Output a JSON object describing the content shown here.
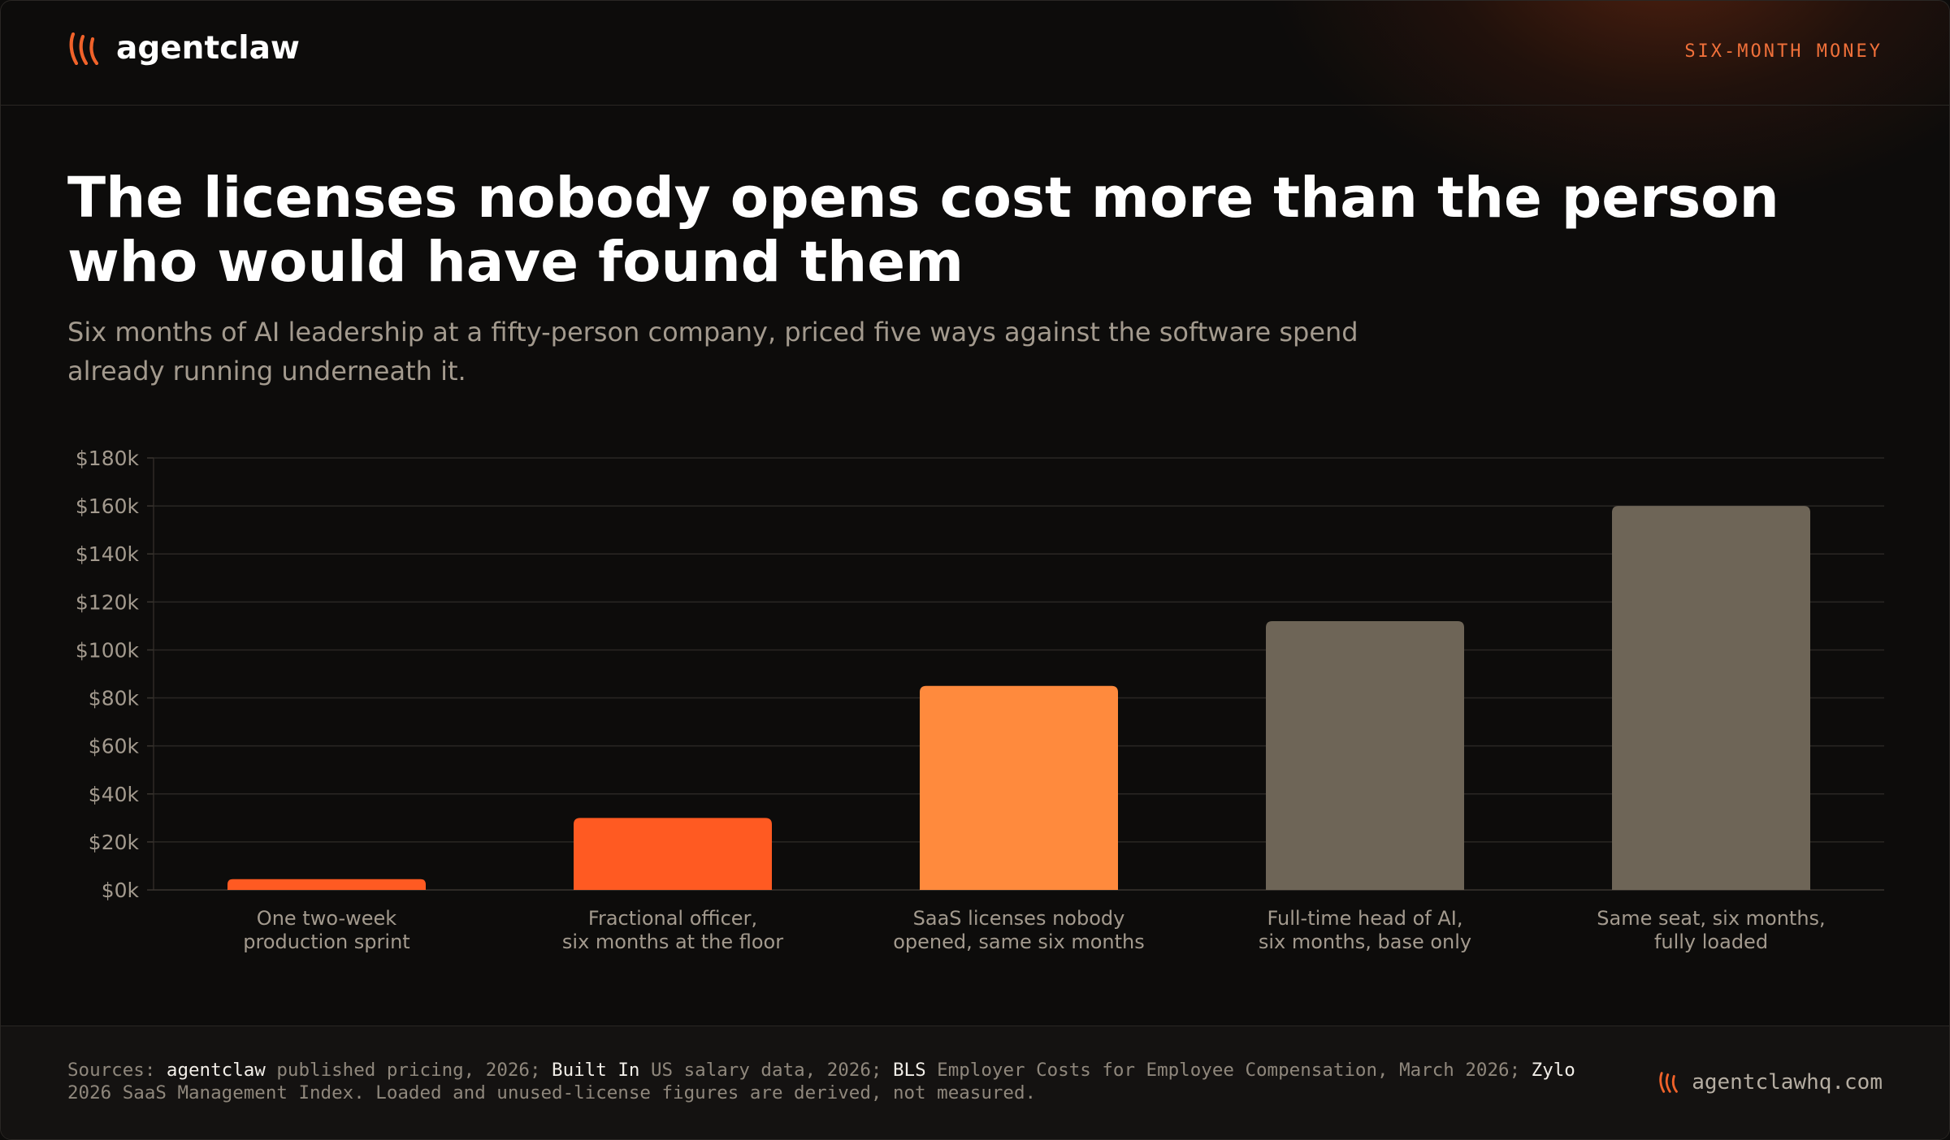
{
  "brand": {
    "name": "agentclaw",
    "logo_icon": "claw-marks-icon",
    "accent": "#f0622a"
  },
  "header": {
    "tag": "SIX-MONTH MONEY"
  },
  "title": "The licenses nobody opens cost more than the person who would have found them",
  "subtitle": "Six months of AI leadership at a fifty-person company, priced five ways against the software spend already running underneath it.",
  "chart_data": {
    "type": "bar",
    "categories": [
      [
        "One two-week",
        "production sprint"
      ],
      [
        "Fractional officer,",
        "six months at the floor"
      ],
      [
        "SaaS licenses nobody",
        "opened, same six months"
      ],
      [
        "Full-time head of AI,",
        "six months, base only"
      ],
      [
        "Same seat, six months,",
        "fully loaded"
      ]
    ],
    "values": [
      4500,
      30000,
      85000,
      112000,
      160000
    ],
    "colors": [
      "#ff5a22",
      "#ff5a22",
      "#ff8a3d",
      "#6e6557",
      "#6e6557"
    ],
    "ylim": [
      0,
      180000
    ],
    "yticks": [
      0,
      20000,
      40000,
      60000,
      80000,
      100000,
      120000,
      140000,
      160000,
      180000
    ],
    "ytick_labels": [
      "$0k",
      "$20k",
      "$40k",
      "$60k",
      "$80k",
      "$100k",
      "$120k",
      "$140k",
      "$160k",
      "$180k"
    ],
    "grid": true,
    "legend": "none"
  },
  "footer": {
    "sources": [
      {
        "text": "Sources: ",
        "hl": false
      },
      {
        "text": "agentclaw",
        "hl": true
      },
      {
        "text": " published pricing, 2026; ",
        "hl": false
      },
      {
        "text": "Built In",
        "hl": true
      },
      {
        "text": " US salary data, 2026; ",
        "hl": false
      },
      {
        "text": "BLS",
        "hl": true
      },
      {
        "text": " Employer Costs for Employee Compensation, March 2026; ",
        "hl": false
      },
      {
        "text": "Zylo",
        "hl": true
      },
      {
        "text": " 2026 SaaS Management Index. Loaded and unused-license figures are derived, not measured.",
        "hl": false
      }
    ],
    "site": "agentclawhq.com"
  }
}
